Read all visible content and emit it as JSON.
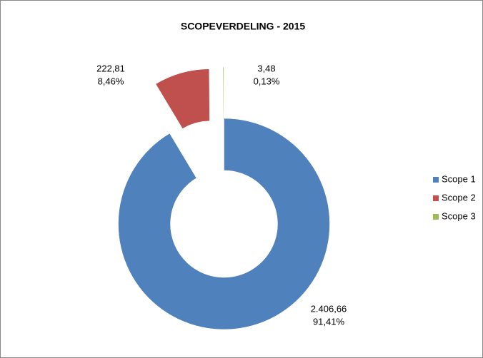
{
  "chart_data": {
    "type": "doughnut",
    "title": "SCOPEVERDELING - 2015",
    "categories": [
      "Scope 1",
      "Scope 2",
      "Scope 3"
    ],
    "values": [
      2406.66,
      222.81,
      3.48
    ],
    "value_labels": [
      "2.406,66",
      "222,81",
      "3,48"
    ],
    "percents": [
      91.41,
      8.46,
      0.13
    ],
    "percent_labels": [
      "91,41%",
      "8,46%",
      "0,13%"
    ],
    "colors": [
      "#4f81bd",
      "#c0504d",
      "#9bbb59"
    ],
    "exploded": [
      false,
      true,
      true
    ],
    "legend": "right"
  }
}
